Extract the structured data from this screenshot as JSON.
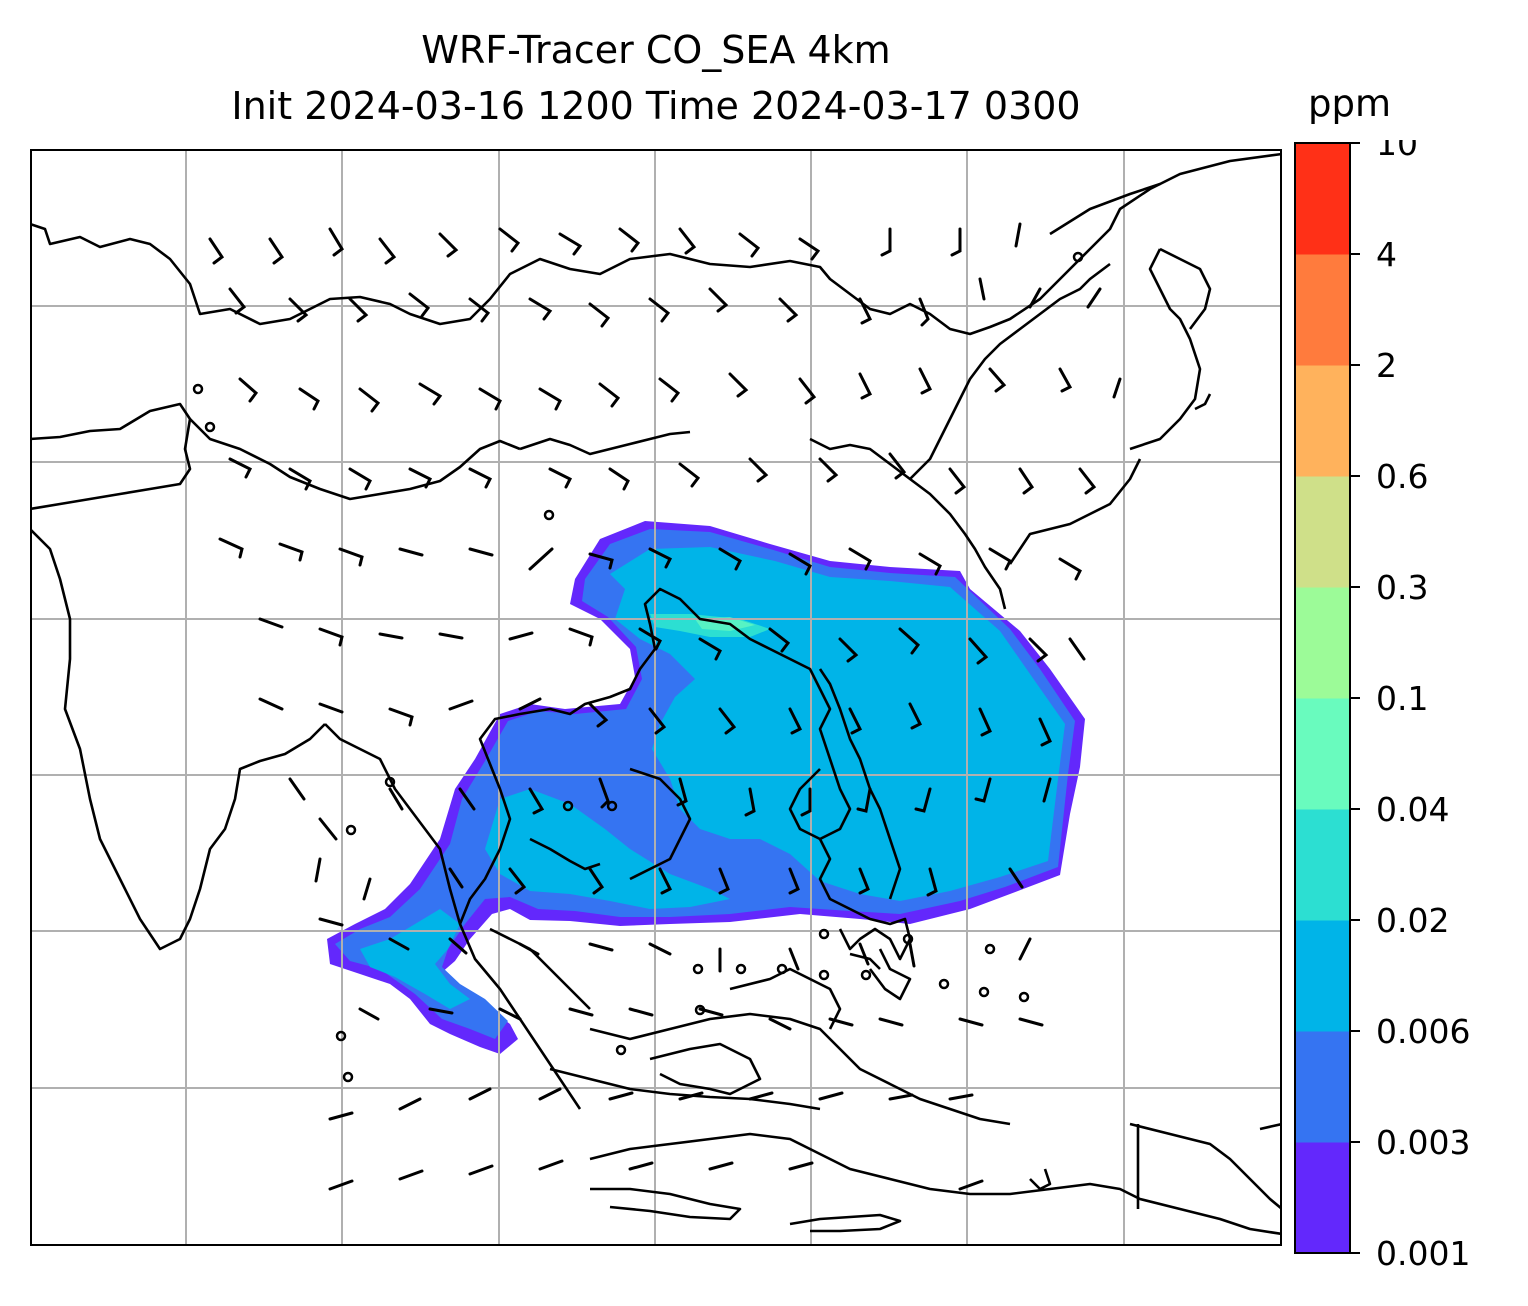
{
  "title_line1": "WRF-Tracer CO_SEA 4km",
  "title_line2": "Init 2024-03-16 1200 Time 2024-03-17 0300",
  "colorbar": {
    "unit": "ppm",
    "tick_labels": [
      "0.001",
      "0.003",
      "0.006",
      "0.02",
      "0.04",
      "0.1",
      "0.3",
      "0.6",
      "2",
      "4",
      "10"
    ],
    "colors": [
      "#6328fc",
      "#3574f2",
      "#00b4e8",
      "#2cdfd2",
      "#69fbbe",
      "#9cfb98",
      "#cfe089",
      "#ffb25c",
      "#ff7b3d",
      "#ff3017"
    ]
  },
  "chart_data": {
    "type": "map",
    "field": "CO tracer concentration",
    "unit": "ppm",
    "levels": [
      0.001,
      0.003,
      0.006,
      0.02,
      0.04,
      0.1,
      0.3,
      0.6,
      2,
      4,
      10
    ],
    "gridlines": true,
    "overlay": "wind barbs",
    "coastlines": true
  }
}
